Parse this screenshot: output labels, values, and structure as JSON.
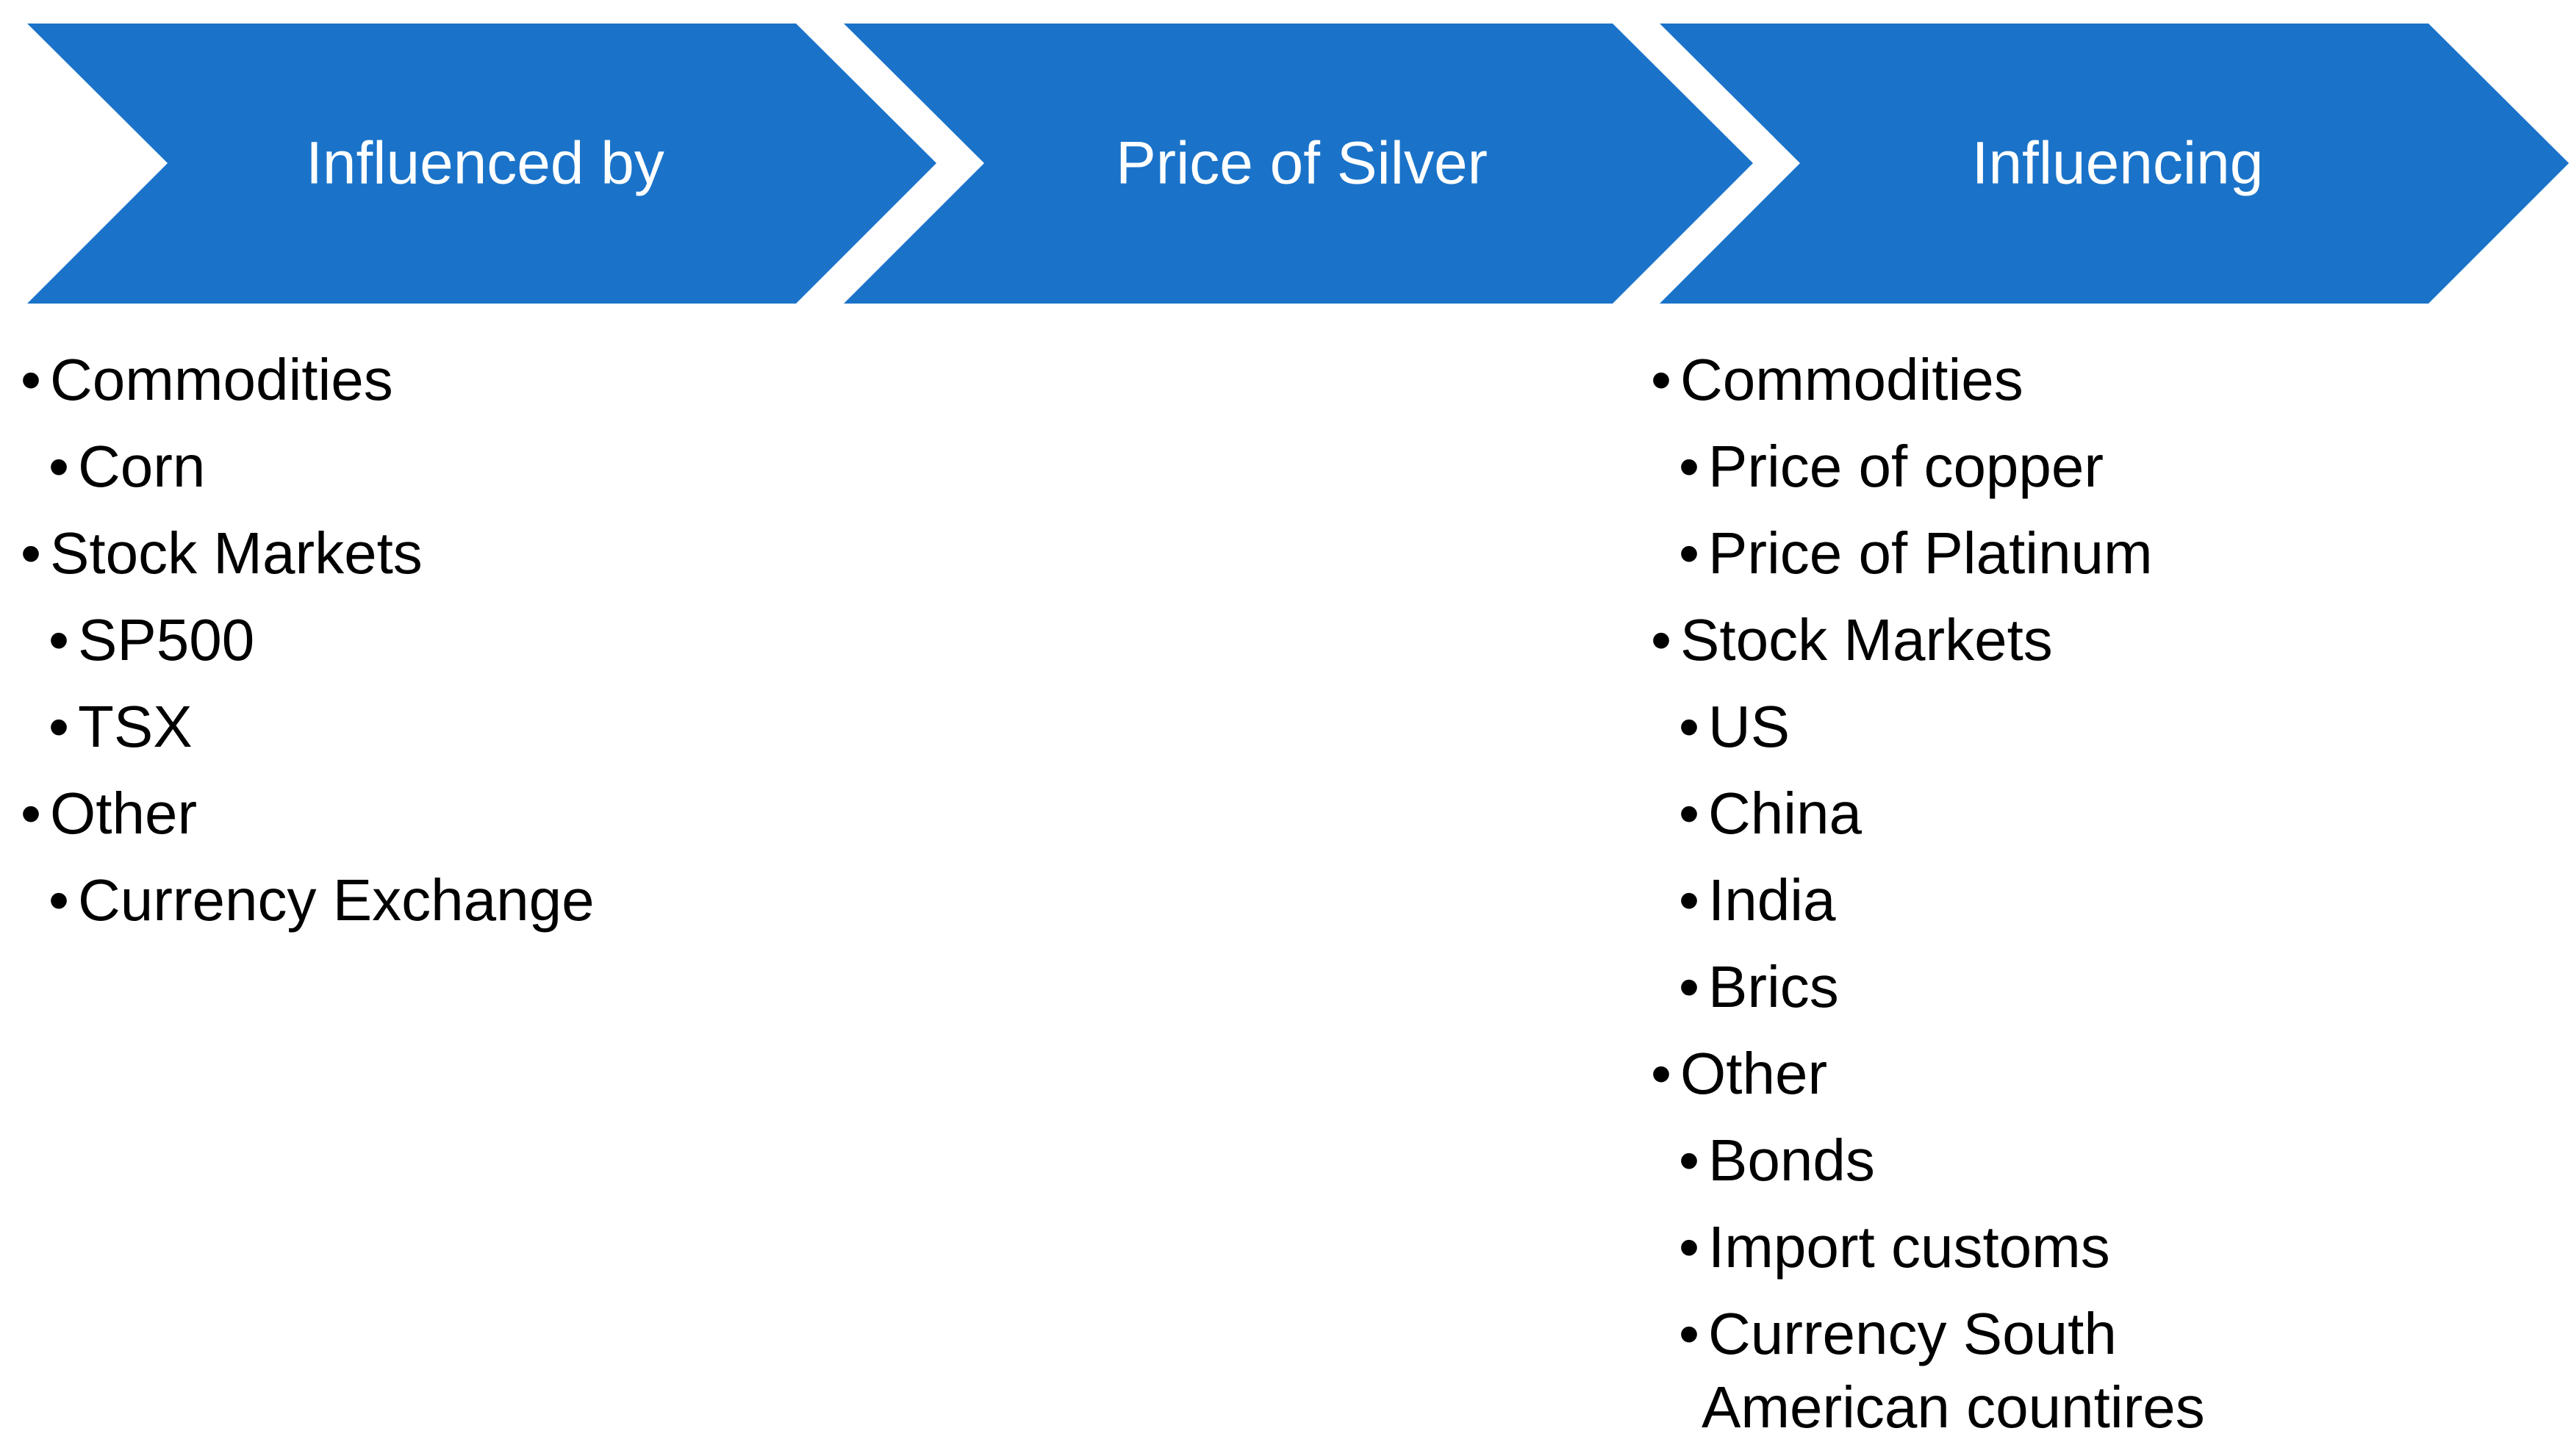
{
  "colors": {
    "chevron_fill": "#1a73c9",
    "chevron_text": "#ffffff",
    "body_text": "#000000"
  },
  "chevrons": [
    {
      "label": "Influenced by"
    },
    {
      "label": "Price of Silver"
    },
    {
      "label": "Influencing"
    }
  ],
  "bullet_glyph": "•",
  "left_list": {
    "items": [
      {
        "text": "Commodities",
        "level": 1
      },
      {
        "text": "Corn",
        "level": 2
      },
      {
        "text": "Stock Markets",
        "level": 1
      },
      {
        "text": "SP500",
        "level": 2
      },
      {
        "text": "TSX",
        "level": 2
      },
      {
        "text": "Other",
        "level": 1
      },
      {
        "text": "Currency Exchange",
        "level": 2
      }
    ]
  },
  "right_list": {
    "items": [
      {
        "text": "Commodities",
        "level": 1
      },
      {
        "text": "Price of copper",
        "level": 2
      },
      {
        "text": "Price of Platinum",
        "level": 2
      },
      {
        "text": "Stock Markets",
        "level": 1
      },
      {
        "text": "US",
        "level": 2
      },
      {
        "text": "China",
        "level": 2
      },
      {
        "text": "India",
        "level": 2
      },
      {
        "text": "Brics",
        "level": 2
      },
      {
        "text": "Other",
        "level": 1
      },
      {
        "text": "Bonds",
        "level": 2
      },
      {
        "text": "Import customs",
        "level": 2
      },
      {
        "text": "Currency South",
        "level": 2,
        "continuation": "American countires"
      }
    ]
  }
}
